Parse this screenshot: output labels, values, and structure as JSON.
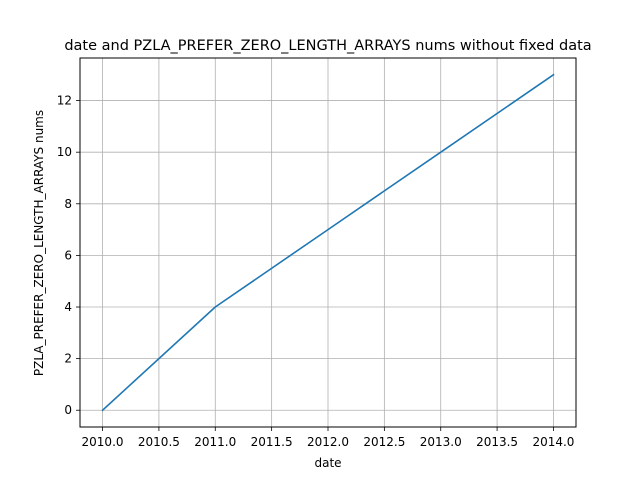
{
  "chart_data": {
    "type": "line",
    "title": "date and PZLA_PREFER_ZERO_LENGTH_ARRAYS nums without fixed data",
    "xlabel": "date",
    "ylabel": "PZLA_PREFER_ZERO_LENGTH_ARRAYS nums",
    "x": [
      2010.0,
      2011.0,
      2012.0,
      2013.0,
      2014.0
    ],
    "series": [
      {
        "values": [
          0,
          4,
          7,
          10,
          13
        ],
        "color": "#1f77b4"
      }
    ],
    "xlim": [
      2009.8,
      2014.2
    ],
    "ylim": [
      -0.65,
      13.65
    ],
    "xticks": [
      "2010.0",
      "2010.5",
      "2011.0",
      "2011.5",
      "2012.0",
      "2012.5",
      "2013.0",
      "2013.5",
      "2014.0"
    ],
    "yticks": [
      "0",
      "2",
      "4",
      "6",
      "8",
      "10",
      "12"
    ],
    "grid": true,
    "legend": false
  }
}
